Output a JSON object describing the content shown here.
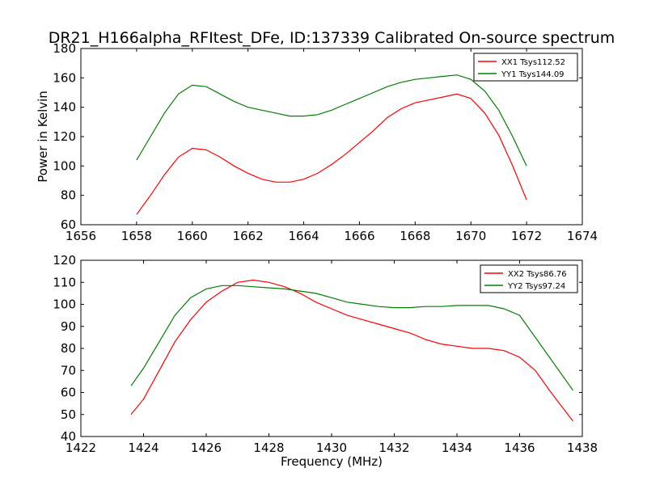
{
  "title": "DR21_H166alpha_RFItest_DFe, ID:137339 Calibrated On-source spectrum",
  "colors": {
    "red": "#ff0000",
    "green": "#008000",
    "axis": "#000000"
  },
  "chart_data": [
    {
      "type": "line",
      "ylabel": "Power in Kelvin",
      "xlabel": "",
      "xlim": [
        1656,
        1674
      ],
      "ylim": [
        60,
        180
      ],
      "xticks": [
        1656,
        1658,
        1660,
        1662,
        1664,
        1666,
        1668,
        1670,
        1672,
        1674
      ],
      "yticks": [
        60,
        80,
        100,
        120,
        140,
        160,
        180
      ],
      "legend_position": "top-right",
      "series": [
        {
          "name": "XX1 Tsys112.52",
          "color": "#ff0000",
          "points": [
            [
              1658.0,
              67
            ],
            [
              1658.5,
              80
            ],
            [
              1659.0,
              94
            ],
            [
              1659.5,
              106
            ],
            [
              1660.0,
              112
            ],
            [
              1660.5,
              111
            ],
            [
              1661.0,
              106
            ],
            [
              1661.5,
              100
            ],
            [
              1662.0,
              95
            ],
            [
              1662.5,
              91
            ],
            [
              1663.0,
              89
            ],
            [
              1663.5,
              89
            ],
            [
              1664.0,
              91
            ],
            [
              1664.5,
              95
            ],
            [
              1665.0,
              101
            ],
            [
              1665.5,
              108
            ],
            [
              1666.0,
              116
            ],
            [
              1666.5,
              124
            ],
            [
              1667.0,
              133
            ],
            [
              1667.5,
              139
            ],
            [
              1668.0,
              143
            ],
            [
              1668.5,
              145
            ],
            [
              1669.0,
              147
            ],
            [
              1669.5,
              149
            ],
            [
              1670.0,
              146
            ],
            [
              1670.5,
              136
            ],
            [
              1671.0,
              121
            ],
            [
              1671.5,
              100
            ],
            [
              1672.0,
              77
            ]
          ]
        },
        {
          "name": "YY1 Tsys144.09",
          "color": "#008000",
          "points": [
            [
              1658.0,
              104
            ],
            [
              1658.5,
              120
            ],
            [
              1659.0,
              136
            ],
            [
              1659.5,
              149
            ],
            [
              1660.0,
              155
            ],
            [
              1660.5,
              154
            ],
            [
              1661.0,
              149
            ],
            [
              1661.5,
              144
            ],
            [
              1662.0,
              140
            ],
            [
              1662.5,
              138
            ],
            [
              1663.0,
              136
            ],
            [
              1663.5,
              134
            ],
            [
              1664.0,
              134
            ],
            [
              1664.5,
              135
            ],
            [
              1665.0,
              138
            ],
            [
              1665.5,
              142
            ],
            [
              1666.0,
              146
            ],
            [
              1666.5,
              150
            ],
            [
              1667.0,
              154
            ],
            [
              1667.5,
              157
            ],
            [
              1668.0,
              159
            ],
            [
              1668.5,
              160
            ],
            [
              1669.0,
              161
            ],
            [
              1669.5,
              162
            ],
            [
              1670.0,
              159
            ],
            [
              1670.5,
              151
            ],
            [
              1671.0,
              138
            ],
            [
              1671.5,
              120
            ],
            [
              1672.0,
              100
            ]
          ]
        }
      ]
    },
    {
      "type": "line",
      "ylabel": "",
      "xlabel": "Frequency (MHz)",
      "xlim": [
        1422,
        1438
      ],
      "ylim": [
        40,
        120
      ],
      "xticks": [
        1422,
        1424,
        1426,
        1428,
        1430,
        1432,
        1434,
        1436,
        1438
      ],
      "yticks": [
        40,
        50,
        60,
        70,
        80,
        90,
        100,
        110,
        120
      ],
      "legend_position": "top-right",
      "series": [
        {
          "name": "XX2 Tsys86.76",
          "color": "#ff0000",
          "points": [
            [
              1423.6,
              50
            ],
            [
              1424.0,
              57
            ],
            [
              1424.5,
              70
            ],
            [
              1425.0,
              83
            ],
            [
              1425.5,
              93
            ],
            [
              1426.0,
              101
            ],
            [
              1426.5,
              106
            ],
            [
              1427.0,
              110
            ],
            [
              1427.5,
              111
            ],
            [
              1428.0,
              110
            ],
            [
              1428.5,
              108
            ],
            [
              1429.0,
              105
            ],
            [
              1429.5,
              101
            ],
            [
              1430.0,
              98
            ],
            [
              1430.5,
              95
            ],
            [
              1431.0,
              93
            ],
            [
              1431.5,
              91
            ],
            [
              1432.0,
              89
            ],
            [
              1432.5,
              87
            ],
            [
              1433.0,
              84
            ],
            [
              1433.5,
              82
            ],
            [
              1434.0,
              81
            ],
            [
              1434.5,
              80
            ],
            [
              1435.0,
              80
            ],
            [
              1435.5,
              79
            ],
            [
              1436.0,
              76
            ],
            [
              1436.5,
              70
            ],
            [
              1437.0,
              60
            ],
            [
              1437.7,
              47
            ]
          ]
        },
        {
          "name": "YY2 Tsys97.24",
          "color": "#008000",
          "points": [
            [
              1423.6,
              63
            ],
            [
              1424.0,
              71
            ],
            [
              1424.5,
              83
            ],
            [
              1425.0,
              95
            ],
            [
              1425.5,
              103
            ],
            [
              1426.0,
              107
            ],
            [
              1426.5,
              108.5
            ],
            [
              1427.0,
              108.5
            ],
            [
              1427.5,
              108
            ],
            [
              1428.0,
              107.5
            ],
            [
              1428.5,
              107
            ],
            [
              1429.0,
              106
            ],
            [
              1429.5,
              105
            ],
            [
              1430.0,
              103
            ],
            [
              1430.5,
              101
            ],
            [
              1431.0,
              100
            ],
            [
              1431.5,
              99
            ],
            [
              1432.0,
              98.5
            ],
            [
              1432.5,
              98.5
            ],
            [
              1433.0,
              99
            ],
            [
              1433.5,
              99
            ],
            [
              1434.0,
              99.5
            ],
            [
              1434.5,
              99.5
            ],
            [
              1435.0,
              99.5
            ],
            [
              1435.5,
              98
            ],
            [
              1436.0,
              95
            ],
            [
              1436.5,
              85
            ],
            [
              1437.0,
              75
            ],
            [
              1437.7,
              61
            ]
          ]
        }
      ]
    }
  ]
}
